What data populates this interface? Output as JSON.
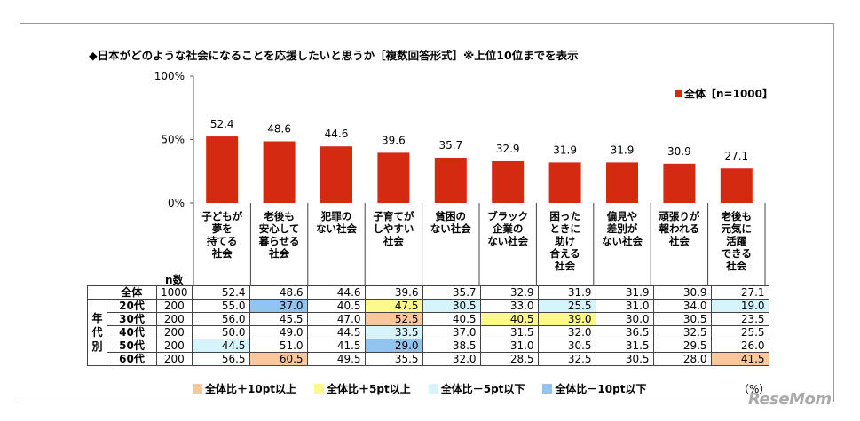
{
  "title": "◆日本がどのような社会になることを応援したいと思うか［複数回答形式］※上位10位までを表示",
  "chart_data": {
    "type": "bar",
    "categories": [
      "子どもが夢を持てる社会",
      "老後も安心して暮らせる社会",
      "犯罪のない社会",
      "子育てがしやすい社会",
      "貧困のない社会",
      "ブラック企業のない社会",
      "困ったときに助け合える社会",
      "偏見や差別がない社会",
      "頑張りが報われる社会",
      "老後も元気に活躍できる社会"
    ],
    "category_lines": [
      [
        "子どもが",
        "夢を",
        "持てる",
        "社会"
      ],
      [
        "老後も",
        "安心して",
        "暮らせる",
        "社会"
      ],
      [
        "犯罪の",
        "ない社会"
      ],
      [
        "子育てが",
        "しやすい",
        "社会"
      ],
      [
        "貧困の",
        "ない社会"
      ],
      [
        "ブラック",
        "企業の",
        "ない社会"
      ],
      [
        "困った",
        "ときに",
        "助け",
        "合える",
        "社会"
      ],
      [
        "偏見や",
        "差別が",
        "ない社会"
      ],
      [
        "頑張りが",
        "報われる",
        "社会"
      ],
      [
        "老後も",
        "元気に",
        "活躍",
        "できる",
        "社会"
      ]
    ],
    "series": [
      {
        "name": "全体【n=1000】",
        "values": [
          52.4,
          48.6,
          44.6,
          39.6,
          35.7,
          32.9,
          31.9,
          31.9,
          30.9,
          27.1
        ]
      }
    ],
    "ylim": [
      0,
      100
    ],
    "yticks": [
      "0%",
      "50%",
      "100%"
    ],
    "bar_color": "#d52a12",
    "legend_position": "top-right"
  },
  "table": {
    "n_header": "n数",
    "group_label": "年代別",
    "rows": [
      {
        "label": "全体",
        "n": "1000",
        "values": [
          "52.4",
          "48.6",
          "44.6",
          "39.6",
          "35.7",
          "32.9",
          "31.9",
          "31.9",
          "30.9",
          "27.1"
        ],
        "hl": [
          0,
          0,
          0,
          0,
          0,
          0,
          0,
          0,
          0,
          0
        ]
      },
      {
        "label": "20代",
        "n": "200",
        "values": [
          "55.0",
          "37.0",
          "40.5",
          "47.5",
          "30.5",
          "33.0",
          "25.5",
          "31.0",
          "34.0",
          "19.0"
        ],
        "hl": [
          0,
          4,
          0,
          2,
          3,
          0,
          3,
          0,
          0,
          3
        ]
      },
      {
        "label": "30代",
        "n": "200",
        "values": [
          "56.0",
          "45.5",
          "47.0",
          "52.5",
          "40.5",
          "40.5",
          "39.0",
          "30.0",
          "30.5",
          "23.5"
        ],
        "hl": [
          0,
          0,
          0,
          1,
          0,
          2,
          2,
          0,
          0,
          0
        ]
      },
      {
        "label": "40代",
        "n": "200",
        "values": [
          "50.0",
          "49.0",
          "44.5",
          "33.5",
          "37.0",
          "31.5",
          "32.0",
          "36.5",
          "32.5",
          "25.5"
        ],
        "hl": [
          0,
          0,
          0,
          3,
          0,
          0,
          0,
          0,
          0,
          0
        ]
      },
      {
        "label": "50代",
        "n": "200",
        "values": [
          "44.5",
          "51.0",
          "41.5",
          "29.0",
          "38.5",
          "31.0",
          "30.5",
          "31.5",
          "29.5",
          "26.0"
        ],
        "hl": [
          3,
          0,
          0,
          4,
          0,
          0,
          0,
          0,
          0,
          0
        ]
      },
      {
        "label": "60代",
        "n": "200",
        "values": [
          "56.5",
          "60.5",
          "49.5",
          "35.5",
          "32.0",
          "28.5",
          "32.5",
          "30.5",
          "28.0",
          "41.5"
        ],
        "hl": [
          0,
          1,
          0,
          0,
          0,
          0,
          0,
          0,
          0,
          1
        ]
      }
    ]
  },
  "highlight_legend": [
    {
      "label": "全体比＋10pt以上",
      "color": "#f8c79b"
    },
    {
      "label": "全体比＋5pt以上",
      "color": "#fdf98a"
    },
    {
      "label": "全体比－5pt以下",
      "color": "#d6f4fb"
    },
    {
      "label": "全体比－10pt以下",
      "color": "#92c4f0"
    }
  ],
  "unit": "（%）",
  "logo": "ReseMom"
}
